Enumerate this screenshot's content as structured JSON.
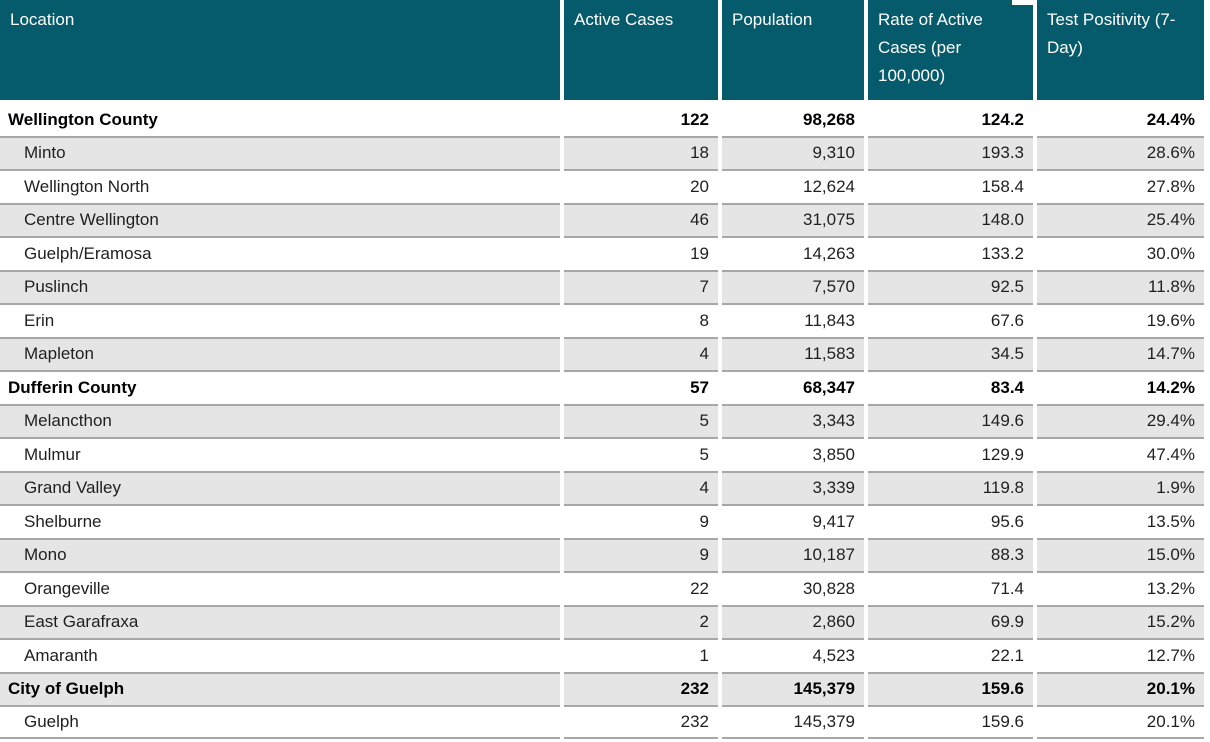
{
  "chart_data": {
    "type": "table",
    "columns": [
      "Location",
      "Active Cases",
      "Population",
      "Rate of Active Cases (per 100,000)",
      "Test Positivity (7-Day)"
    ],
    "rows": [
      {
        "location": "Wellington County",
        "group": true,
        "active_cases": "122",
        "population": "98,268",
        "rate": "124.2",
        "test_positivity": "24.4%"
      },
      {
        "location": "Minto",
        "group": false,
        "active_cases": "18",
        "population": "9,310",
        "rate": "193.3",
        "test_positivity": "28.6%"
      },
      {
        "location": "Wellington North",
        "group": false,
        "active_cases": "20",
        "population": "12,624",
        "rate": "158.4",
        "test_positivity": "27.8%"
      },
      {
        "location": "Centre Wellington",
        "group": false,
        "active_cases": "46",
        "population": "31,075",
        "rate": "148.0",
        "test_positivity": "25.4%"
      },
      {
        "location": "Guelph/Eramosa",
        "group": false,
        "active_cases": "19",
        "population": "14,263",
        "rate": "133.2",
        "test_positivity": "30.0%"
      },
      {
        "location": "Puslinch",
        "group": false,
        "active_cases": "7",
        "population": "7,570",
        "rate": "92.5",
        "test_positivity": "11.8%"
      },
      {
        "location": "Erin",
        "group": false,
        "active_cases": "8",
        "population": "11,843",
        "rate": "67.6",
        "test_positivity": "19.6%"
      },
      {
        "location": "Mapleton",
        "group": false,
        "active_cases": "4",
        "population": "11,583",
        "rate": "34.5",
        "test_positivity": "14.7%"
      },
      {
        "location": "Dufferin County",
        "group": true,
        "active_cases": "57",
        "population": "68,347",
        "rate": "83.4",
        "test_positivity": "14.2%"
      },
      {
        "location": "Melancthon",
        "group": false,
        "active_cases": "5",
        "population": "3,343",
        "rate": "149.6",
        "test_positivity": "29.4%"
      },
      {
        "location": "Mulmur",
        "group": false,
        "active_cases": "5",
        "population": "3,850",
        "rate": "129.9",
        "test_positivity": "47.4%"
      },
      {
        "location": "Grand Valley",
        "group": false,
        "active_cases": "4",
        "population": "3,339",
        "rate": "119.8",
        "test_positivity": "1.9%"
      },
      {
        "location": "Shelburne",
        "group": false,
        "active_cases": "9",
        "population": "9,417",
        "rate": "95.6",
        "test_positivity": "13.5%"
      },
      {
        "location": "Mono",
        "group": false,
        "active_cases": "9",
        "population": "10,187",
        "rate": "88.3",
        "test_positivity": "15.0%"
      },
      {
        "location": "Orangeville",
        "group": false,
        "active_cases": "22",
        "population": "30,828",
        "rate": "71.4",
        "test_positivity": "13.2%"
      },
      {
        "location": "East Garafraxa",
        "group": false,
        "active_cases": "2",
        "population": "2,860",
        "rate": "69.9",
        "test_positivity": "15.2%"
      },
      {
        "location": "Amaranth",
        "group": false,
        "active_cases": "1",
        "population": "4,523",
        "rate": "22.1",
        "test_positivity": "12.7%"
      },
      {
        "location": "City of Guelph",
        "group": true,
        "active_cases": "232",
        "population": "145,379",
        "rate": "159.6",
        "test_positivity": "20.1%"
      },
      {
        "location": "Guelph",
        "group": false,
        "active_cases": "232",
        "population": "145,379",
        "rate": "159.6",
        "test_positivity": "20.1%"
      }
    ],
    "layout": {
      "zebra_striping": true,
      "group_rows_bold": true,
      "numeric_columns_right_aligned": true
    }
  },
  "colors": {
    "header_bg": "#055A6B",
    "header_text": "#FFFFFF",
    "row_bg": "#FFFFFF",
    "row_alt_bg": "#E5E5E5",
    "separator": "#A7A7A7",
    "text": "#1F1F1F",
    "text_bold": "#000000"
  }
}
